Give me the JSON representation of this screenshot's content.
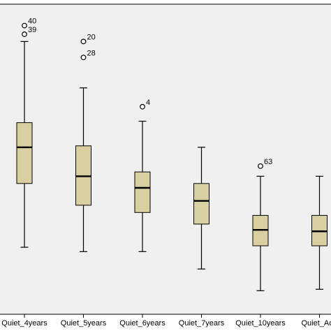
{
  "chart_data": {
    "type": "box",
    "title": "",
    "xlabel": "",
    "ylabel": "",
    "ylim": [
      0,
      100
    ],
    "box_color": "#d8d0a0",
    "background_color": "#f0f0f0",
    "grid": false,
    "categories": [
      "Quiet_4years",
      "Quiet_5years",
      "Quiet_6years",
      "Quiet_7years",
      "Quiet_10years",
      "Quiet_Adu"
    ],
    "boxes": [
      {
        "category": "Quiet_4years",
        "whisker_low": 19.5,
        "q1": 41.5,
        "median": 54.0,
        "q3": 62.5,
        "whisker_high": 90.5,
        "outliers": [
          {
            "value": 96.0,
            "label": "40"
          },
          {
            "value": 93.0,
            "label": "39"
          }
        ]
      },
      {
        "category": "Quiet_5years",
        "whisker_low": 18.0,
        "q1": 34.0,
        "median": 44.0,
        "q3": 54.5,
        "whisker_high": 74.5,
        "outliers": [
          {
            "value": 90.5,
            "label": "20"
          },
          {
            "value": 85.0,
            "label": "28"
          }
        ]
      },
      {
        "category": "Quiet_6years",
        "whisker_low": 18.0,
        "q1": 31.5,
        "median": 40.0,
        "q3": 45.5,
        "whisker_high": 63.0,
        "outliers": [
          {
            "value": 68.0,
            "label": "4"
          }
        ]
      },
      {
        "category": "Quiet_7years",
        "whisker_low": 12.0,
        "q1": 27.5,
        "median": 35.5,
        "q3": 41.5,
        "whisker_high": 54.0,
        "outliers": []
      },
      {
        "category": "Quiet_10years",
        "whisker_low": 4.5,
        "q1": 20.0,
        "median": 25.5,
        "q3": 30.5,
        "whisker_high": 44.0,
        "outliers": [
          {
            "value": 47.5,
            "label": "63"
          }
        ]
      },
      {
        "category": "Quiet_Adu",
        "whisker_low": 5.0,
        "q1": 20.0,
        "median": 25.0,
        "q3": 30.5,
        "whisker_high": 44.0,
        "outliers": []
      }
    ]
  }
}
